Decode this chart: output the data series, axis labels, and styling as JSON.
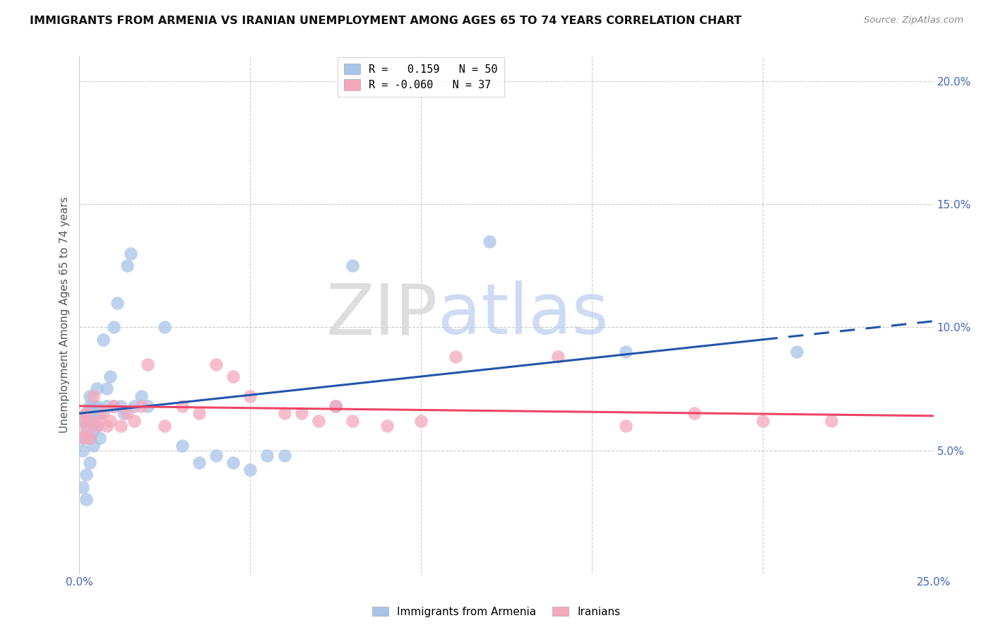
{
  "title": "IMMIGRANTS FROM ARMENIA VS IRANIAN UNEMPLOYMENT AMONG AGES 65 TO 74 YEARS CORRELATION CHART",
  "source": "Source: ZipAtlas.com",
  "ylabel": "Unemployment Among Ages 65 to 74 years",
  "xlim": [
    0.0,
    0.25
  ],
  "ylim": [
    0.0,
    0.21
  ],
  "legend1_label": "R =   0.159   N = 50",
  "legend2_label": "R = -0.060   N = 37",
  "legend_bottom_label1": "Immigrants from Armenia",
  "legend_bottom_label2": "Iranians",
  "blue_color": "#A8C4E8",
  "pink_color": "#F4A8BC",
  "blue_line_color": "#2255AA",
  "pink_line_color": "#EE4466",
  "watermark_zip": "ZIP",
  "watermark_atlas": "atlas",
  "background_color": "#FFFFFF",
  "grid_color": "#CCCCCC",
  "tick_color": "#4466BB",
  "title_fontsize": 11.5,
  "axis_label_fontsize": 11,
  "tick_fontsize": 11,
  "armenia_x": [
    0.001,
    0.001,
    0.001,
    0.001,
    0.002,
    0.002,
    0.002,
    0.002,
    0.002,
    0.003,
    0.003,
    0.003,
    0.003,
    0.003,
    0.004,
    0.004,
    0.004,
    0.004,
    0.005,
    0.005,
    0.005,
    0.006,
    0.006,
    0.007,
    0.008,
    0.008,
    0.009,
    0.01,
    0.01,
    0.011,
    0.012,
    0.013,
    0.014,
    0.015,
    0.016,
    0.018,
    0.02,
    0.025,
    0.03,
    0.035,
    0.04,
    0.045,
    0.05,
    0.055,
    0.06,
    0.075,
    0.08,
    0.12,
    0.16,
    0.21
  ],
  "armenia_y": [
    0.035,
    0.05,
    0.055,
    0.062,
    0.03,
    0.04,
    0.055,
    0.06,
    0.065,
    0.045,
    0.055,
    0.062,
    0.068,
    0.072,
    0.052,
    0.058,
    0.063,
    0.068,
    0.06,
    0.068,
    0.075,
    0.055,
    0.065,
    0.095,
    0.068,
    0.075,
    0.08,
    0.068,
    0.1,
    0.11,
    0.068,
    0.065,
    0.125,
    0.13,
    0.068,
    0.072,
    0.068,
    0.1,
    0.052,
    0.045,
    0.048,
    0.045,
    0.042,
    0.048,
    0.048,
    0.068,
    0.125,
    0.135,
    0.09,
    0.09
  ],
  "iran_x": [
    0.001,
    0.001,
    0.002,
    0.002,
    0.003,
    0.003,
    0.004,
    0.005,
    0.006,
    0.007,
    0.008,
    0.009,
    0.01,
    0.012,
    0.014,
    0.016,
    0.018,
    0.02,
    0.025,
    0.03,
    0.035,
    0.04,
    0.045,
    0.05,
    0.06,
    0.065,
    0.07,
    0.075,
    0.08,
    0.09,
    0.1,
    0.11,
    0.14,
    0.16,
    0.18,
    0.2,
    0.22
  ],
  "iran_y": [
    0.055,
    0.062,
    0.058,
    0.065,
    0.055,
    0.062,
    0.072,
    0.06,
    0.062,
    0.065,
    0.06,
    0.062,
    0.068,
    0.06,
    0.065,
    0.062,
    0.068,
    0.085,
    0.06,
    0.068,
    0.065,
    0.085,
    0.08,
    0.072,
    0.065,
    0.065,
    0.062,
    0.068,
    0.062,
    0.06,
    0.062,
    0.088,
    0.088,
    0.06,
    0.065,
    0.062,
    0.062
  ],
  "arm_line_x0": 0.0,
  "arm_line_y0": 0.065,
  "arm_line_x1": 0.2,
  "arm_line_y1": 0.095,
  "arm_line_dash_x0": 0.2,
  "arm_line_dash_x1": 0.25,
  "iran_line_x0": 0.0,
  "iran_line_y0": 0.068,
  "iran_line_x1": 0.25,
  "iran_line_y1": 0.064
}
